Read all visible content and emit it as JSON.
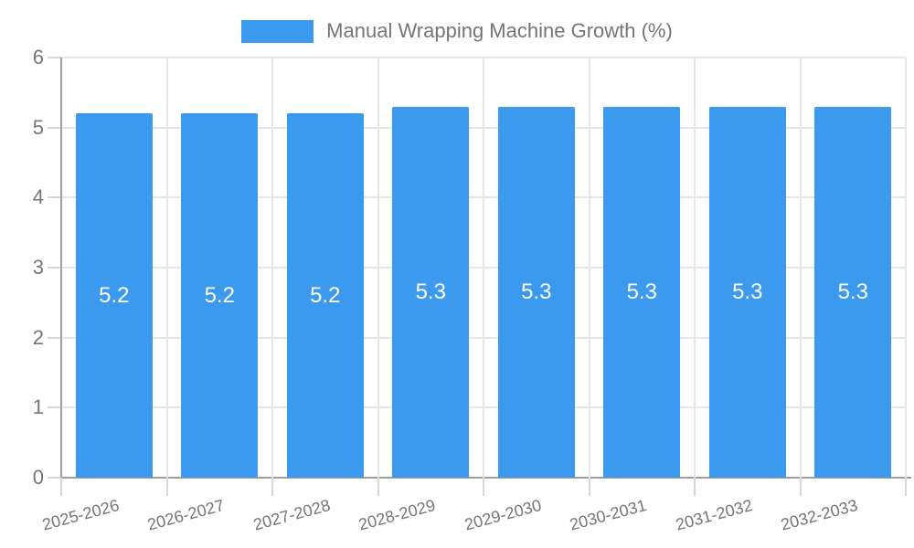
{
  "legend": {
    "label": "Manual Wrapping Machine Growth (%)"
  },
  "colors": {
    "bar": "#3B99EE",
    "value_label": "#FFFFFF",
    "tick_text": "#757575",
    "axis_line": "#9E9E9E",
    "grid_line": "#E6E6E6",
    "tick_mark": "#D6D6D6",
    "background": "#FFFFFF"
  },
  "chart_data": {
    "type": "bar",
    "title": "Manual Wrapping Machine Growth (%)",
    "categories": [
      "2025-2026",
      "2026-2027",
      "2027-2028",
      "2028-2029",
      "2029-2030",
      "2030-2031",
      "2031-2032",
      "2032-2033"
    ],
    "values": [
      5.2,
      5.2,
      5.2,
      5.3,
      5.3,
      5.3,
      5.3,
      5.3
    ],
    "value_labels": [
      "5.2",
      "5.2",
      "5.2",
      "5.3",
      "5.3",
      "5.3",
      "5.3",
      "5.3"
    ],
    "xlabel": "",
    "ylabel": "",
    "ylim": [
      0,
      6
    ],
    "yticks": [
      0,
      1,
      2,
      3,
      4,
      5,
      6
    ],
    "ytick_labels": [
      "0",
      "1",
      "2",
      "3",
      "4",
      "5",
      "6"
    ],
    "grid": true,
    "legend_position": "top",
    "bar_labels_inside": true,
    "x_label_rotation_deg": -15
  }
}
